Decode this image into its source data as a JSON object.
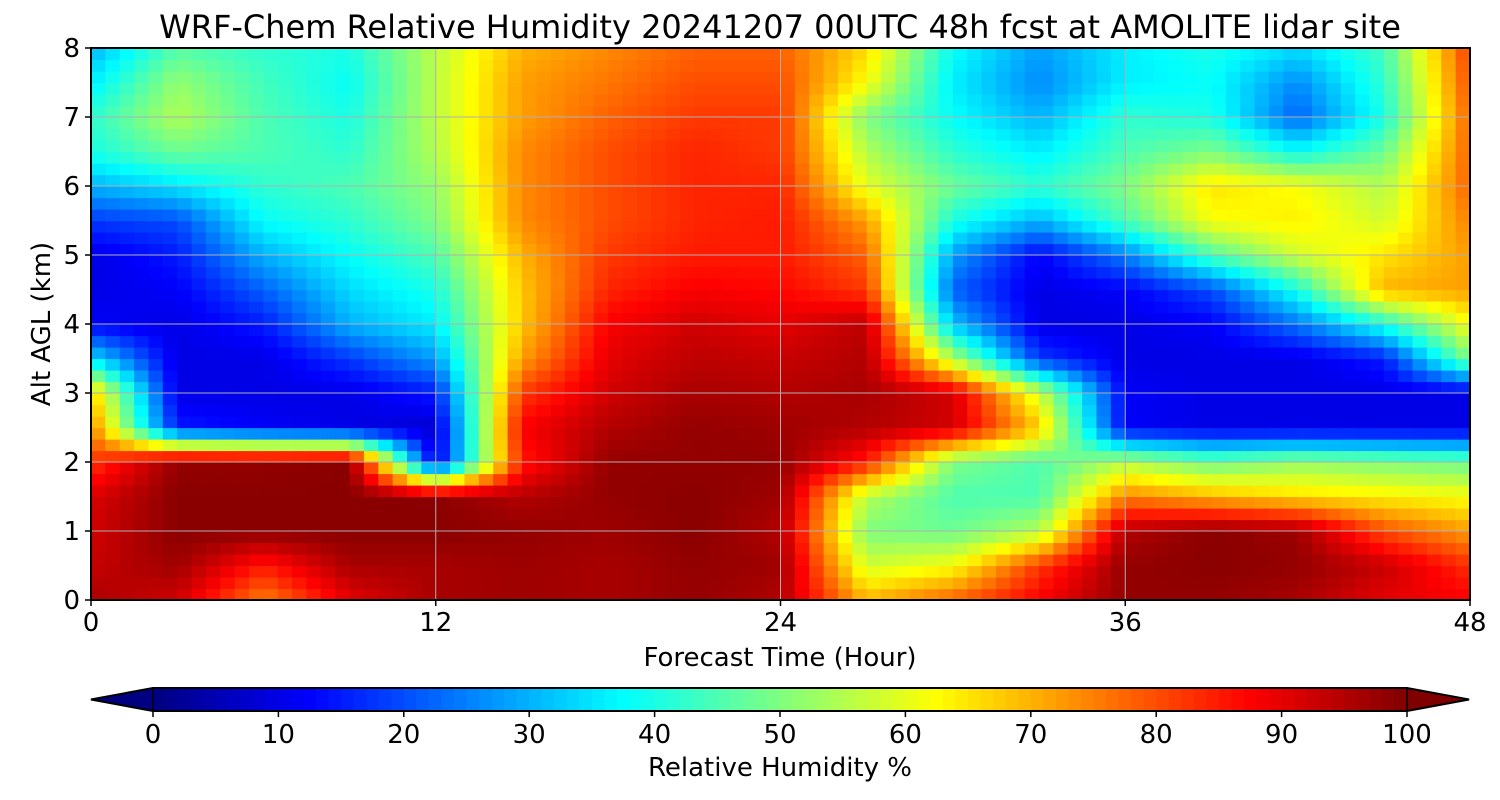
{
  "chart_data": {
    "type": "heatmap",
    "title": "WRF-Chem Relative Humidity 20241207 00UTC 48h fcst at AMOLITE lidar site",
    "xlabel": "Forecast Time (Hour)",
    "ylabel": "Alt AGL (km)",
    "xlim": [
      0,
      48
    ],
    "ylim": [
      0,
      8
    ],
    "x_ticks": [
      0,
      12,
      24,
      36,
      48
    ],
    "y_ticks": [
      0,
      1,
      2,
      3,
      4,
      5,
      6,
      7,
      8
    ],
    "grid": true,
    "colormap": "jet",
    "colorbar": {
      "label": "Relative Humidity %",
      "range": [
        0,
        100
      ],
      "ticks": [
        0,
        10,
        20,
        30,
        40,
        50,
        60,
        70,
        80,
        90,
        100
      ],
      "extend": "both",
      "placement": "bottom"
    },
    "x": [
      0,
      3,
      6,
      9,
      12,
      15,
      18,
      21,
      24,
      27,
      30,
      33,
      36,
      39,
      42,
      45,
      48
    ],
    "y": [
      0,
      0.5,
      1,
      1.5,
      2,
      2.5,
      3,
      3.5,
      4,
      4.5,
      5,
      5.5,
      6,
      6.5,
      7,
      7.5,
      8
    ],
    "z": [
      [
        96,
        92,
        75,
        90,
        96,
        97,
        96,
        98,
        95,
        70,
        78,
        88,
        98,
        98,
        96,
        90,
        88
      ],
      [
        93,
        97,
        85,
        96,
        96,
        97,
        96,
        98,
        97,
        58,
        62,
        82,
        98,
        99,
        98,
        93,
        83
      ],
      [
        92,
        99,
        99,
        99,
        99,
        98,
        97,
        99,
        95,
        50,
        48,
        55,
        95,
        99,
        97,
        80,
        72
      ],
      [
        91,
        99,
        99,
        99,
        99,
        95,
        98,
        99,
        97,
        55,
        45,
        45,
        75,
        70,
        66,
        64,
        62
      ],
      [
        82,
        98,
        98,
        99,
        10,
        85,
        98,
        98,
        98,
        85,
        50,
        45,
        55,
        48,
        52,
        50,
        48
      ],
      [
        75,
        15,
        12,
        10,
        8,
        88,
        95,
        98,
        97,
        95,
        92,
        68,
        12,
        10,
        10,
        10,
        10
      ],
      [
        68,
        10,
        10,
        10,
        15,
        82,
        92,
        96,
        95,
        96,
        92,
        58,
        12,
        10,
        10,
        10,
        10
      ],
      [
        35,
        10,
        10,
        18,
        28,
        72,
        90,
        94,
        93,
        95,
        55,
        18,
        10,
        10,
        10,
        15,
        50
      ],
      [
        12,
        10,
        15,
        30,
        36,
        68,
        88,
        92,
        90,
        94,
        32,
        10,
        10,
        12,
        24,
        40,
        62
      ],
      [
        10,
        12,
        22,
        34,
        40,
        68,
        84,
        88,
        87,
        82,
        22,
        10,
        12,
        20,
        40,
        70,
        72
      ],
      [
        10,
        15,
        30,
        38,
        45,
        70,
        82,
        85,
        85,
        78,
        28,
        12,
        25,
        45,
        58,
        65,
        72
      ],
      [
        18,
        20,
        38,
        42,
        50,
        74,
        80,
        84,
        85,
        72,
        40,
        30,
        45,
        62,
        64,
        58,
        75
      ],
      [
        30,
        35,
        42,
        45,
        52,
        74,
        80,
        84,
        84,
        60,
        48,
        42,
        50,
        65,
        62,
        55,
        78
      ],
      [
        40,
        48,
        45,
        42,
        55,
        74,
        80,
        84,
        82,
        55,
        42,
        36,
        45,
        50,
        38,
        48,
        78
      ],
      [
        42,
        55,
        45,
        40,
        56,
        72,
        78,
        82,
        82,
        50,
        38,
        30,
        42,
        40,
        22,
        40,
        78
      ],
      [
        36,
        52,
        44,
        38,
        56,
        72,
        76,
        80,
        80,
        62,
        36,
        26,
        36,
        38,
        26,
        42,
        80
      ],
      [
        30,
        46,
        42,
        40,
        56,
        70,
        74,
        78,
        78,
        66,
        38,
        28,
        36,
        40,
        34,
        44,
        82
      ]
    ]
  }
}
